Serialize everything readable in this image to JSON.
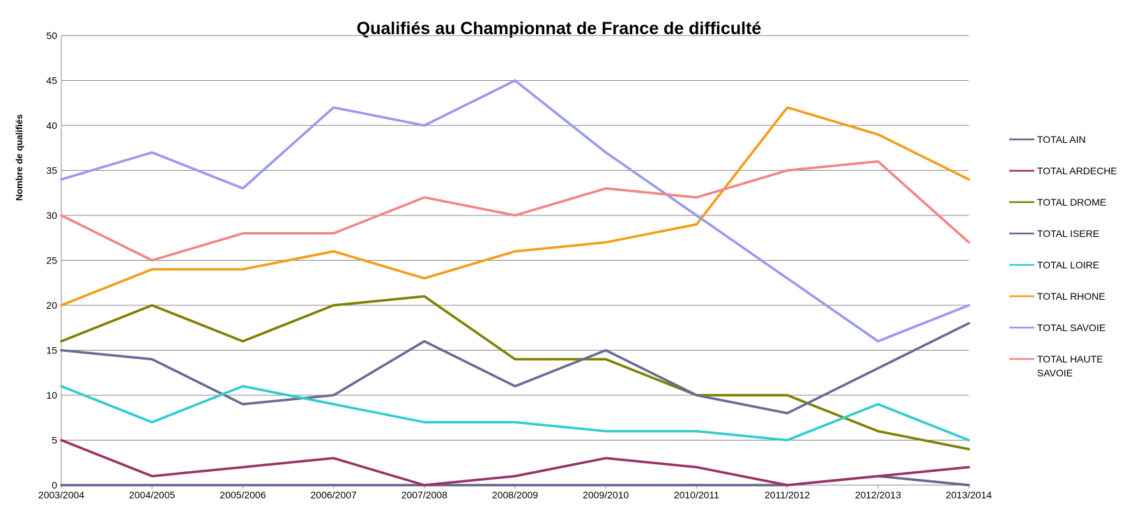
{
  "chart_data": {
    "type": "line",
    "title": "Qualifiés au Championnat de France de difficulté",
    "xlabel": "",
    "ylabel": "Nombre de qualifiés",
    "ylim": [
      0,
      50
    ],
    "yticks": [
      0,
      5,
      10,
      15,
      20,
      25,
      30,
      35,
      40,
      45,
      50
    ],
    "grid": true,
    "legend_position": "right",
    "categories": [
      "2003/2004",
      "2004/2005",
      "2005/2006",
      "2006/2007",
      "2007/2008",
      "2008/2009",
      "2009/2010",
      "2010/2011",
      "2011/2012",
      "2012/2013",
      "2013/2014"
    ],
    "series": [
      {
        "name": "TOTAL AIN",
        "color": "#66668f",
        "values": [
          0,
          0,
          0,
          0,
          0,
          0,
          0,
          0,
          0,
          1,
          0
        ]
      },
      {
        "name": "TOTAL ARDECHE",
        "color": "#993366",
        "values": [
          5,
          1,
          2,
          3,
          0,
          1,
          3,
          2,
          0,
          1,
          2
        ]
      },
      {
        "name": "TOTAL DROME",
        "color": "#808000",
        "values": [
          16,
          20,
          16,
          20,
          21,
          14,
          14,
          10,
          10,
          6,
          4
        ]
      },
      {
        "name": "TOTAL ISERE",
        "color": "#6a6a96",
        "values": [
          15,
          14,
          9,
          10,
          16,
          11,
          15,
          10,
          8,
          13,
          18
        ]
      },
      {
        "name": "TOTAL LOIRE",
        "color": "#33cccc",
        "values": [
          11,
          7,
          11,
          9,
          7,
          7,
          6,
          6,
          5,
          9,
          5
        ]
      },
      {
        "name": "TOTAL RHONE",
        "color": "#f59c1a",
        "values": [
          20,
          24,
          24,
          26,
          23,
          26,
          27,
          29,
          42,
          39,
          34
        ]
      },
      {
        "name": "TOTAL SAVOIE",
        "color": "#9999f0",
        "values": [
          34,
          37,
          33,
          42,
          40,
          45,
          37,
          30,
          23,
          16,
          20
        ]
      },
      {
        "name": "TOTAL HAUTE SAVOIE",
        "color": "#f28585",
        "values": [
          30,
          25,
          28,
          28,
          32,
          30,
          33,
          32,
          35,
          36,
          27
        ]
      }
    ]
  }
}
